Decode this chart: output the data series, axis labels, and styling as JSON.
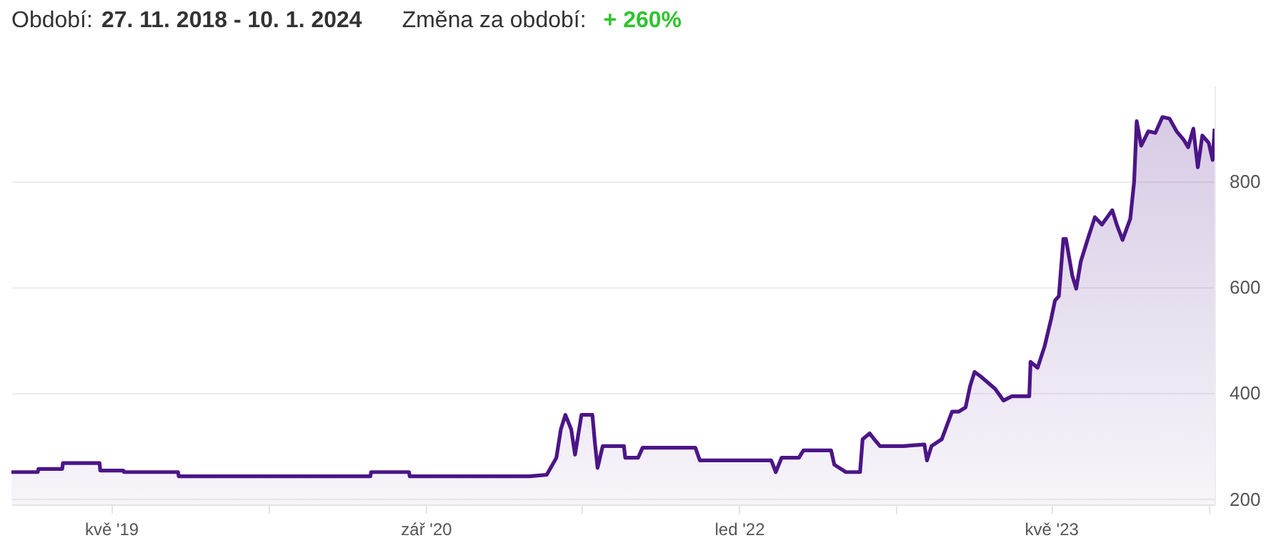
{
  "chart_data": {
    "type": "area",
    "annotations": [
      "Období:",
      "27. 11. 2018  -  10. 1. 2024",
      "Změna za období:",
      "+ 260%"
    ],
    "color": "#4b1587",
    "x": [
      "2018-11-27",
      "2019-01-07",
      "2019-01-08",
      "2019-02-14",
      "2019-02-15",
      "2019-04-13",
      "2019-04-14",
      "2019-05-20",
      "2019-05-21",
      "2019-08-13",
      "2019-08-14",
      "2020-06-07",
      "2020-06-08",
      "2020-08-06",
      "2020-08-07",
      "2021-02-09",
      "2021-03-08",
      "2021-03-23",
      "2021-03-30",
      "2021-04-06",
      "2021-04-15",
      "2021-04-21",
      "2021-05-01",
      "2021-05-18",
      "2021-05-22",
      "2021-05-26",
      "2021-06-03",
      "2021-07-06",
      "2021-07-08",
      "2021-07-28",
      "2021-08-04",
      "2021-10-25",
      "2021-11-01",
      "2022-02-20",
      "2022-02-27",
      "2022-03-08",
      "2022-04-04",
      "2022-04-11",
      "2022-05-24",
      "2022-05-29",
      "2022-06-16",
      "2022-07-08",
      "2022-07-12",
      "2022-07-23",
      "2022-07-30",
      "2022-08-08",
      "2022-09-13",
      "2022-10-16",
      "2022-10-20",
      "2022-10-27",
      "2022-11-12",
      "2022-11-28",
      "2022-12-08",
      "2022-12-19",
      "2022-12-26",
      "2023-01-02",
      "2023-01-11",
      "2023-02-03",
      "2023-02-16",
      "2023-03-01",
      "2023-03-28",
      "2023-03-30",
      "2023-04-10",
      "2023-04-21",
      "2023-05-01",
      "2023-05-07",
      "2023-05-13",
      "2023-05-20",
      "2023-05-24",
      "2023-06-03",
      "2023-06-09",
      "2023-06-16",
      "2023-06-27",
      "2023-07-08",
      "2023-07-19",
      "2023-08-04",
      "2023-08-11",
      "2023-08-20",
      "2023-09-01",
      "2023-09-07",
      "2023-09-11",
      "2023-09-18",
      "2023-09-29",
      "2023-10-10",
      "2023-10-21",
      "2023-11-01",
      "2023-11-12",
      "2023-11-23",
      "2023-11-30",
      "2023-12-08",
      "2023-12-15",
      "2023-12-22",
      "2024-01-01",
      "2024-01-07",
      "2024-01-10"
    ],
    "values": [
      251,
      251,
      257,
      257,
      268,
      268,
      254,
      254,
      251,
      251,
      243,
      243,
      251,
      251,
      243,
      243,
      246,
      278,
      332,
      359,
      332,
      284,
      359,
      359,
      305,
      259,
      300,
      300,
      278,
      278,
      297,
      297,
      273,
      273,
      251,
      278,
      278,
      292,
      292,
      265,
      251,
      251,
      313,
      324,
      313,
      300,
      300,
      303,
      273,
      300,
      313,
      365,
      365,
      373,
      413,
      440,
      432,
      408,
      386,
      394,
      394,
      459,
      448,
      489,
      540,
      575,
      583,
      691,
      691,
      621,
      597,
      648,
      691,
      732,
      718,
      745,
      718,
      689,
      729,
      799,
      913,
      867,
      894,
      891,
      921,
      918,
      894,
      878,
      864,
      899,
      826,
      886,
      872,
      840,
      899
    ],
    "xlim": [
      "2018-11-27",
      "2024-01-10"
    ],
    "ylim": [
      190,
      980
    ],
    "xticks": [
      {
        "value": "2019-05-01",
        "label": "kvě '19"
      },
      {
        "value": "2020-01-01",
        "label": null
      },
      {
        "value": "2020-09-01",
        "label": "zář '20"
      },
      {
        "value": "2021-05-01",
        "label": null
      },
      {
        "value": "2022-01-01",
        "label": "led '22"
      },
      {
        "value": "2022-09-01",
        "label": null
      },
      {
        "value": "2023-05-01",
        "label": "kvě '23"
      },
      {
        "value": "2024-01-01",
        "label": null
      }
    ],
    "yticks": [
      200,
      400,
      600,
      800
    ],
    "grid": "y"
  }
}
